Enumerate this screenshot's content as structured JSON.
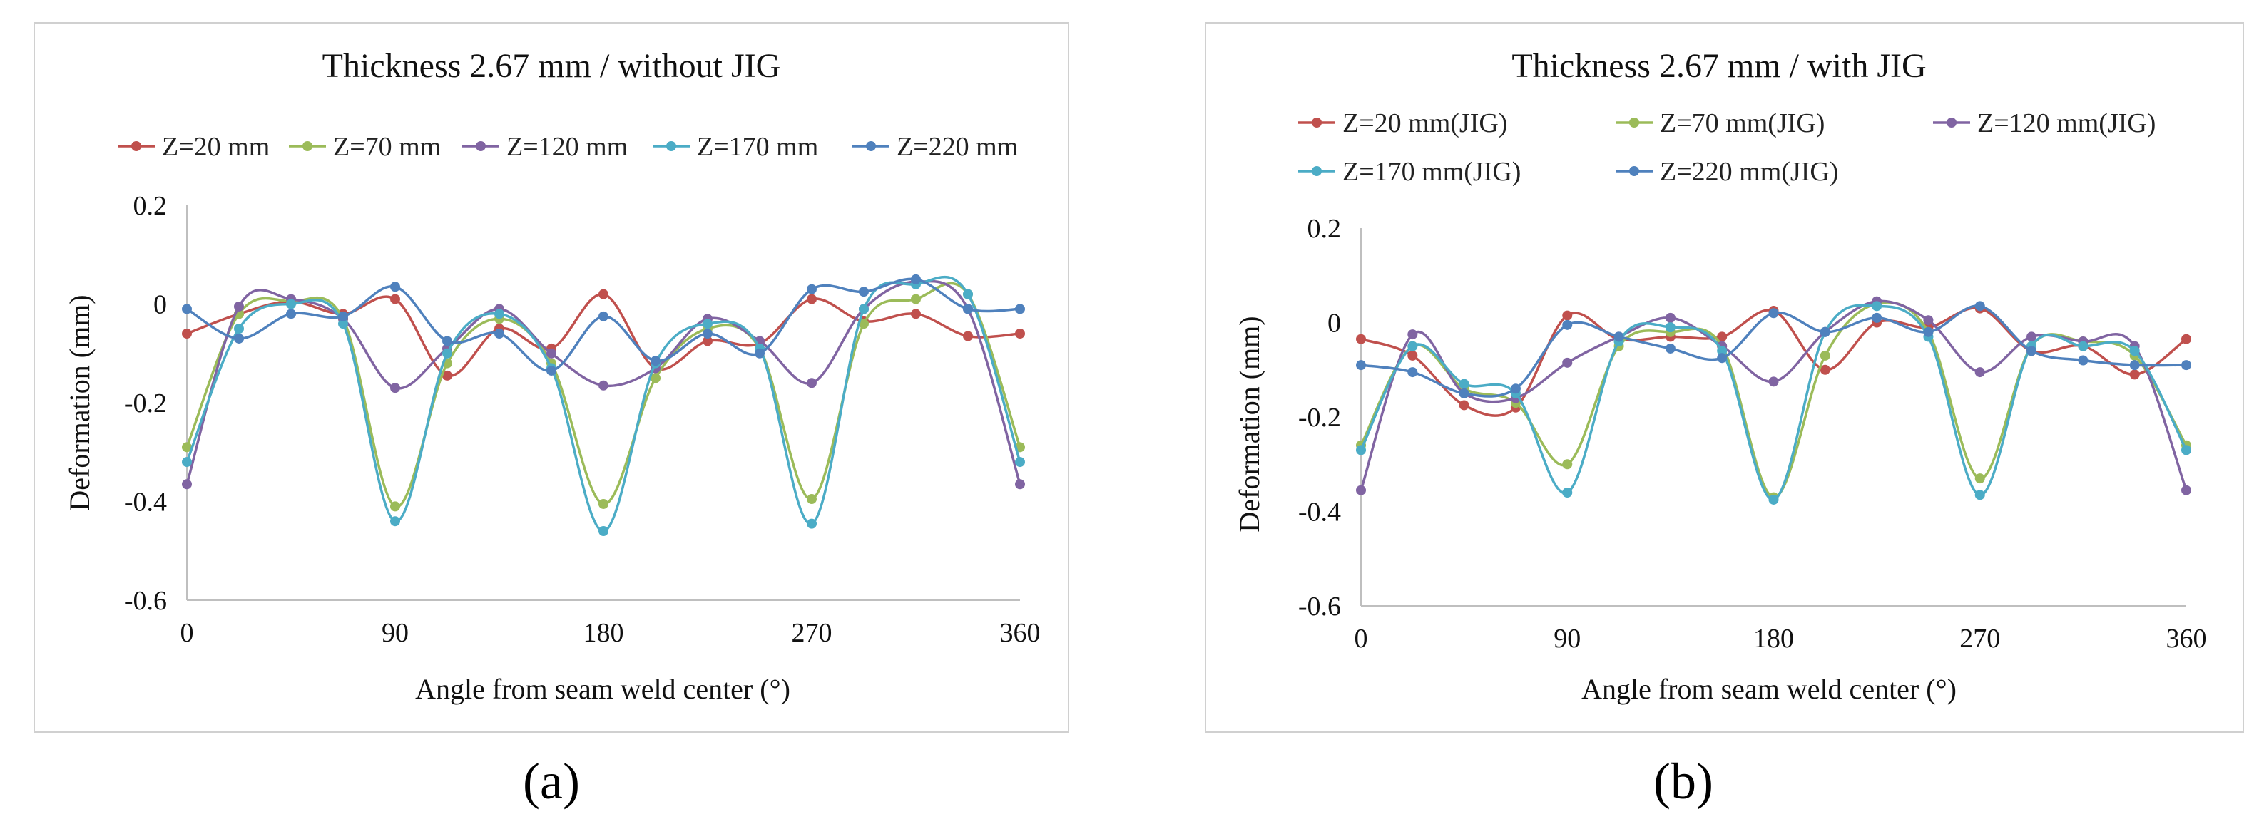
{
  "chart_data": [
    {
      "type": "line",
      "panel_label": "(a)",
      "title": "Thickness 2.67 mm / without JIG",
      "xlabel": "Angle from seam weld center (°)",
      "ylabel": "Deformation (mm)",
      "xlim": [
        0,
        360
      ],
      "ylim": [
        -0.6,
        0.2
      ],
      "xticks": [
        0,
        90,
        180,
        270,
        360
      ],
      "yticks": [
        0.2,
        0,
        -0.2,
        -0.4,
        -0.6
      ],
      "xtick_labels": [
        "0",
        "90",
        "180",
        "270",
        "360"
      ],
      "ytick_labels": [
        "0.2",
        "0",
        "-0.2",
        "-0.4",
        "-0.6"
      ],
      "legend_position": "top",
      "grid": false,
      "x": [
        0,
        22.5,
        45,
        67.5,
        90,
        112.5,
        135,
        157.5,
        180,
        202.5,
        225,
        247.5,
        270,
        292.5,
        315,
        337.5,
        360
      ],
      "series": [
        {
          "name": "Z=20 mm",
          "color": "#c0504d",
          "values": [
            -0.06,
            -0.02,
            0.005,
            -0.02,
            0.01,
            -0.145,
            -0.05,
            -0.09,
            0.02,
            -0.13,
            -0.075,
            -0.08,
            0.01,
            -0.035,
            -0.02,
            -0.065,
            -0.06
          ]
        },
        {
          "name": "Z=70 mm",
          "color": "#9bbb59",
          "values": [
            -0.29,
            -0.02,
            0.005,
            -0.03,
            -0.41,
            -0.12,
            -0.03,
            -0.12,
            -0.405,
            -0.15,
            -0.05,
            -0.09,
            -0.395,
            -0.04,
            0.01,
            0.02,
            -0.29
          ]
        },
        {
          "name": "Z=120 mm",
          "color": "#8064a2",
          "values": [
            -0.365,
            -0.005,
            0.01,
            -0.03,
            -0.17,
            -0.09,
            -0.01,
            -0.1,
            -0.165,
            -0.13,
            -0.03,
            -0.075,
            -0.16,
            -0.01,
            0.045,
            -0.01,
            -0.365
          ]
        },
        {
          "name": "Z=170 mm",
          "color": "#4bacc6",
          "values": [
            -0.32,
            -0.05,
            0.0,
            -0.04,
            -0.44,
            -0.1,
            -0.02,
            -0.13,
            -0.46,
            -0.12,
            -0.04,
            -0.09,
            -0.445,
            -0.01,
            0.04,
            0.02,
            -0.32
          ]
        },
        {
          "name": "Z=220 mm",
          "color": "#4f81bd",
          "values": [
            -0.01,
            -0.07,
            -0.02,
            -0.025,
            0.035,
            -0.075,
            -0.06,
            -0.135,
            -0.025,
            -0.115,
            -0.06,
            -0.1,
            0.03,
            0.025,
            0.05,
            -0.01,
            -0.01
          ]
        }
      ]
    },
    {
      "type": "line",
      "panel_label": "(b)",
      "title": "Thickness 2.67 mm / with JIG",
      "xlabel": "Angle from seam weld center (°)",
      "ylabel": "Deformation (mm)",
      "xlim": [
        0,
        360
      ],
      "ylim": [
        -0.6,
        0.2
      ],
      "xticks": [
        0,
        90,
        180,
        270,
        360
      ],
      "yticks": [
        0.2,
        0,
        -0.2,
        -0.4,
        -0.6
      ],
      "xtick_labels": [
        "0",
        "90",
        "180",
        "270",
        "360"
      ],
      "ytick_labels": [
        "0.2",
        "0",
        "-0.2",
        "-0.4",
        "-0.6"
      ],
      "legend_position": "top",
      "grid": false,
      "x": [
        0,
        22.5,
        45,
        67.5,
        90,
        112.5,
        135,
        157.5,
        180,
        202.5,
        225,
        247.5,
        270,
        292.5,
        315,
        337.5,
        360
      ],
      "series": [
        {
          "name": "Z=20 mm(JIG)",
          "color": "#c0504d",
          "values": [
            -0.035,
            -0.07,
            -0.175,
            -0.18,
            0.015,
            -0.035,
            -0.03,
            -0.03,
            0.025,
            -0.1,
            0.0,
            -0.01,
            0.03,
            -0.06,
            -0.05,
            -0.11,
            -0.035
          ]
        },
        {
          "name": "Z=70 mm(JIG)",
          "color": "#9bbb59",
          "values": [
            -0.26,
            -0.05,
            -0.14,
            -0.17,
            -0.3,
            -0.05,
            -0.02,
            -0.05,
            -0.37,
            -0.07,
            0.04,
            -0.02,
            -0.33,
            -0.05,
            -0.04,
            -0.07,
            -0.26
          ]
        },
        {
          "name": "Z=120 mm(JIG)",
          "color": "#8064a2",
          "values": [
            -0.355,
            -0.025,
            -0.15,
            -0.16,
            -0.085,
            -0.03,
            0.01,
            -0.05,
            -0.125,
            -0.02,
            0.045,
            0.005,
            -0.105,
            -0.03,
            -0.04,
            -0.05,
            -0.355
          ]
        },
        {
          "name": "Z=170 mm(JIG)",
          "color": "#4bacc6",
          "values": [
            -0.27,
            -0.05,
            -0.13,
            -0.15,
            -0.36,
            -0.04,
            -0.01,
            -0.06,
            -0.375,
            -0.02,
            0.035,
            -0.03,
            -0.365,
            -0.05,
            -0.05,
            -0.06,
            -0.27
          ]
        },
        {
          "name": "Z=220 mm(JIG)",
          "color": "#4f81bd",
          "values": [
            -0.09,
            -0.105,
            -0.15,
            -0.14,
            -0.005,
            -0.03,
            -0.055,
            -0.075,
            0.02,
            -0.02,
            0.01,
            -0.02,
            0.035,
            -0.06,
            -0.08,
            -0.09,
            -0.09
          ]
        }
      ]
    }
  ]
}
